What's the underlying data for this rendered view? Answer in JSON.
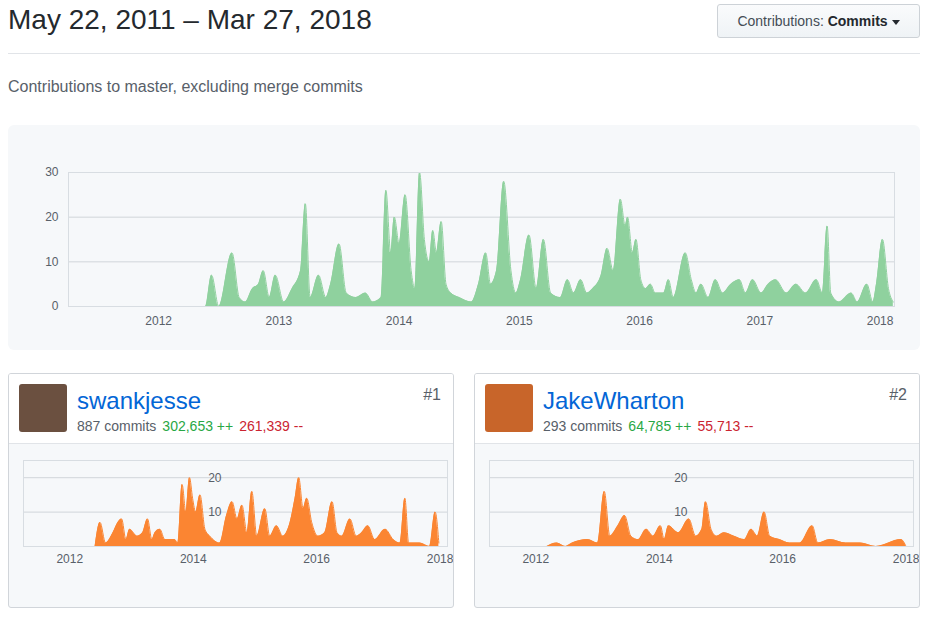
{
  "header": {
    "title": "May 22, 2011 – Mar 27, 2018",
    "button_label": "Contributions:",
    "button_value": "Commits"
  },
  "subtitle": "Contributions to master, excluding merge commits",
  "contributors": [
    {
      "rank": "#1",
      "name": "swankjesse",
      "commits": "887 commits",
      "additions": "302,653 ++",
      "deletions": "261,339 --"
    },
    {
      "rank": "#2",
      "name": "JakeWharton",
      "commits": "293 commits",
      "additions": "64,785 ++",
      "deletions": "55,713 --"
    }
  ],
  "chart_data": [
    {
      "type": "area",
      "color": "#8fd19e",
      "grid": true,
      "xlim": [
        2011.25,
        2018.12
      ],
      "xticks": [
        2012,
        2013,
        2014,
        2015,
        2016,
        2017,
        2018
      ],
      "ylim": [
        0,
        30
      ],
      "yticks": [
        0,
        10,
        20,
        30
      ],
      "x": [
        2011.39,
        2012.39,
        2012.44,
        2012.5,
        2012.61,
        2012.67,
        2012.72,
        2012.78,
        2012.83,
        2012.87,
        2012.92,
        2012.97,
        2013.04,
        2013.11,
        2013.18,
        2013.22,
        2013.26,
        2013.33,
        2013.39,
        2013.43,
        2013.5,
        2013.56,
        2013.64,
        2013.72,
        2013.78,
        2013.85,
        2013.89,
        2013.93,
        2013.96,
        2014.0,
        2014.05,
        2014.1,
        2014.13,
        2014.17,
        2014.21,
        2014.25,
        2014.28,
        2014.31,
        2014.35,
        2014.39,
        2014.43,
        2014.5,
        2014.6,
        2014.66,
        2014.72,
        2014.76,
        2014.81,
        2014.87,
        2014.93,
        2014.97,
        2015.01,
        2015.08,
        2015.14,
        2015.2,
        2015.26,
        2015.34,
        2015.4,
        2015.45,
        2015.51,
        2015.56,
        2015.61,
        2015.68,
        2015.73,
        2015.78,
        2015.84,
        2015.88,
        2015.9,
        2015.94,
        2015.97,
        2016.01,
        2016.05,
        2016.09,
        2016.13,
        2016.2,
        2016.24,
        2016.28,
        2016.38,
        2016.43,
        2016.47,
        2016.51,
        2016.57,
        2016.63,
        2016.69,
        2016.76,
        2016.83,
        2016.88,
        2016.94,
        2017.01,
        2017.07,
        2017.13,
        2017.22,
        2017.3,
        2017.38,
        2017.47,
        2017.52,
        2017.56,
        2017.59,
        2017.66,
        2017.76,
        2017.81,
        2017.89,
        2017.94,
        2017.97,
        2018.02,
        2018.07,
        2018.11
      ],
      "values": [
        0,
        0,
        7,
        0,
        12,
        2,
        1,
        4,
        5,
        8,
        2,
        7,
        1,
        4,
        8,
        23,
        2,
        7,
        2,
        5,
        14,
        3,
        2,
        3,
        1,
        2,
        26,
        12,
        20,
        14,
        25,
        8,
        4,
        30,
        15,
        10,
        17,
        12,
        19,
        5,
        3,
        2,
        1,
        5,
        12,
        5,
        8,
        28,
        8,
        3,
        6,
        16,
        4,
        15,
        3,
        2,
        6,
        3,
        6,
        3,
        4,
        7,
        13,
        8,
        24,
        18,
        20,
        12,
        15,
        6,
        4,
        5,
        3,
        3,
        6,
        2,
        12,
        6,
        3,
        5,
        2,
        6,
        3,
        5,
        6,
        3,
        6,
        3,
        5,
        6,
        3,
        5,
        3,
        6,
        3,
        18,
        3,
        1,
        3,
        1,
        5,
        1,
        5,
        15,
        4,
        1
      ]
    },
    {
      "type": "area",
      "color": "#fb8532",
      "grid": true,
      "xlim": [
        2011.25,
        2018.12
      ],
      "xticks": [
        2012,
        2014,
        2016,
        2018
      ],
      "ylim": [
        0,
        25
      ],
      "yticks": [
        10,
        20
      ],
      "x": [
        2012.41,
        2012.49,
        2012.58,
        2012.7,
        2012.78,
        2012.84,
        2012.91,
        2012.97,
        2013.09,
        2013.18,
        2013.26,
        2013.33,
        2013.38,
        2013.46,
        2013.54,
        2013.7,
        2013.75,
        2013.82,
        2013.88,
        2013.94,
        2013.99,
        2014.04,
        2014.11,
        2014.19,
        2014.27,
        2014.43,
        2014.54,
        2014.63,
        2014.71,
        2014.79,
        2014.87,
        2014.95,
        2015.03,
        2015.16,
        2015.24,
        2015.35,
        2015.45,
        2015.57,
        2015.65,
        2015.71,
        2015.78,
        2015.84,
        2015.92,
        2016.02,
        2016.13,
        2016.25,
        2016.33,
        2016.41,
        2016.54,
        2016.64,
        2016.73,
        2016.83,
        2016.94,
        2017.11,
        2017.24,
        2017.35,
        2017.43,
        2017.49,
        2017.67,
        2017.83,
        2017.92,
        2017.98
      ],
      "values": [
        0,
        7,
        1,
        4,
        7,
        8,
        2,
        5,
        3,
        4,
        8,
        2,
        4,
        5,
        2,
        2,
        1,
        18,
        10,
        20,
        14,
        10,
        15,
        5,
        3,
        1,
        9,
        13,
        8,
        12,
        4,
        16,
        3,
        11,
        3,
        6,
        3,
        7,
        14,
        20,
        11,
        14,
        7,
        3,
        4,
        13,
        4,
        3,
        8,
        3,
        4,
        6,
        2,
        5,
        2,
        1,
        14,
        1,
        1,
        0,
        10,
        1
      ]
    },
    {
      "type": "area",
      "color": "#fb8532",
      "grid": true,
      "xlim": [
        2011.25,
        2018.12
      ],
      "xticks": [
        2012,
        2014,
        2016,
        2018
      ],
      "ylim": [
        0,
        25
      ],
      "yticks": [
        10,
        20
      ],
      "x": [
        2012.18,
        2012.34,
        2012.48,
        2012.59,
        2012.84,
        2013.0,
        2013.11,
        2013.2,
        2013.33,
        2013.44,
        2013.54,
        2013.66,
        2013.79,
        2013.9,
        2014.02,
        2014.08,
        2014.15,
        2014.31,
        2014.48,
        2014.59,
        2014.69,
        2014.75,
        2014.84,
        2014.93,
        2015.05,
        2015.21,
        2015.38,
        2015.49,
        2015.59,
        2015.7,
        2015.79,
        2015.95,
        2016.11,
        2016.28,
        2016.48,
        2016.57,
        2016.77,
        2017.02,
        2017.26,
        2017.51,
        2017.92,
        2018.0
      ],
      "values": [
        0,
        1,
        0,
        1,
        2,
        1,
        16,
        3,
        6,
        9,
        3,
        2,
        5,
        3,
        6,
        2,
        6,
        4,
        8,
        3,
        5,
        13,
        5,
        3,
        4,
        3,
        2,
        5,
        3,
        10,
        3,
        2,
        1,
        1,
        6,
        1,
        2,
        1,
        1,
        0,
        2,
        0
      ]
    }
  ]
}
